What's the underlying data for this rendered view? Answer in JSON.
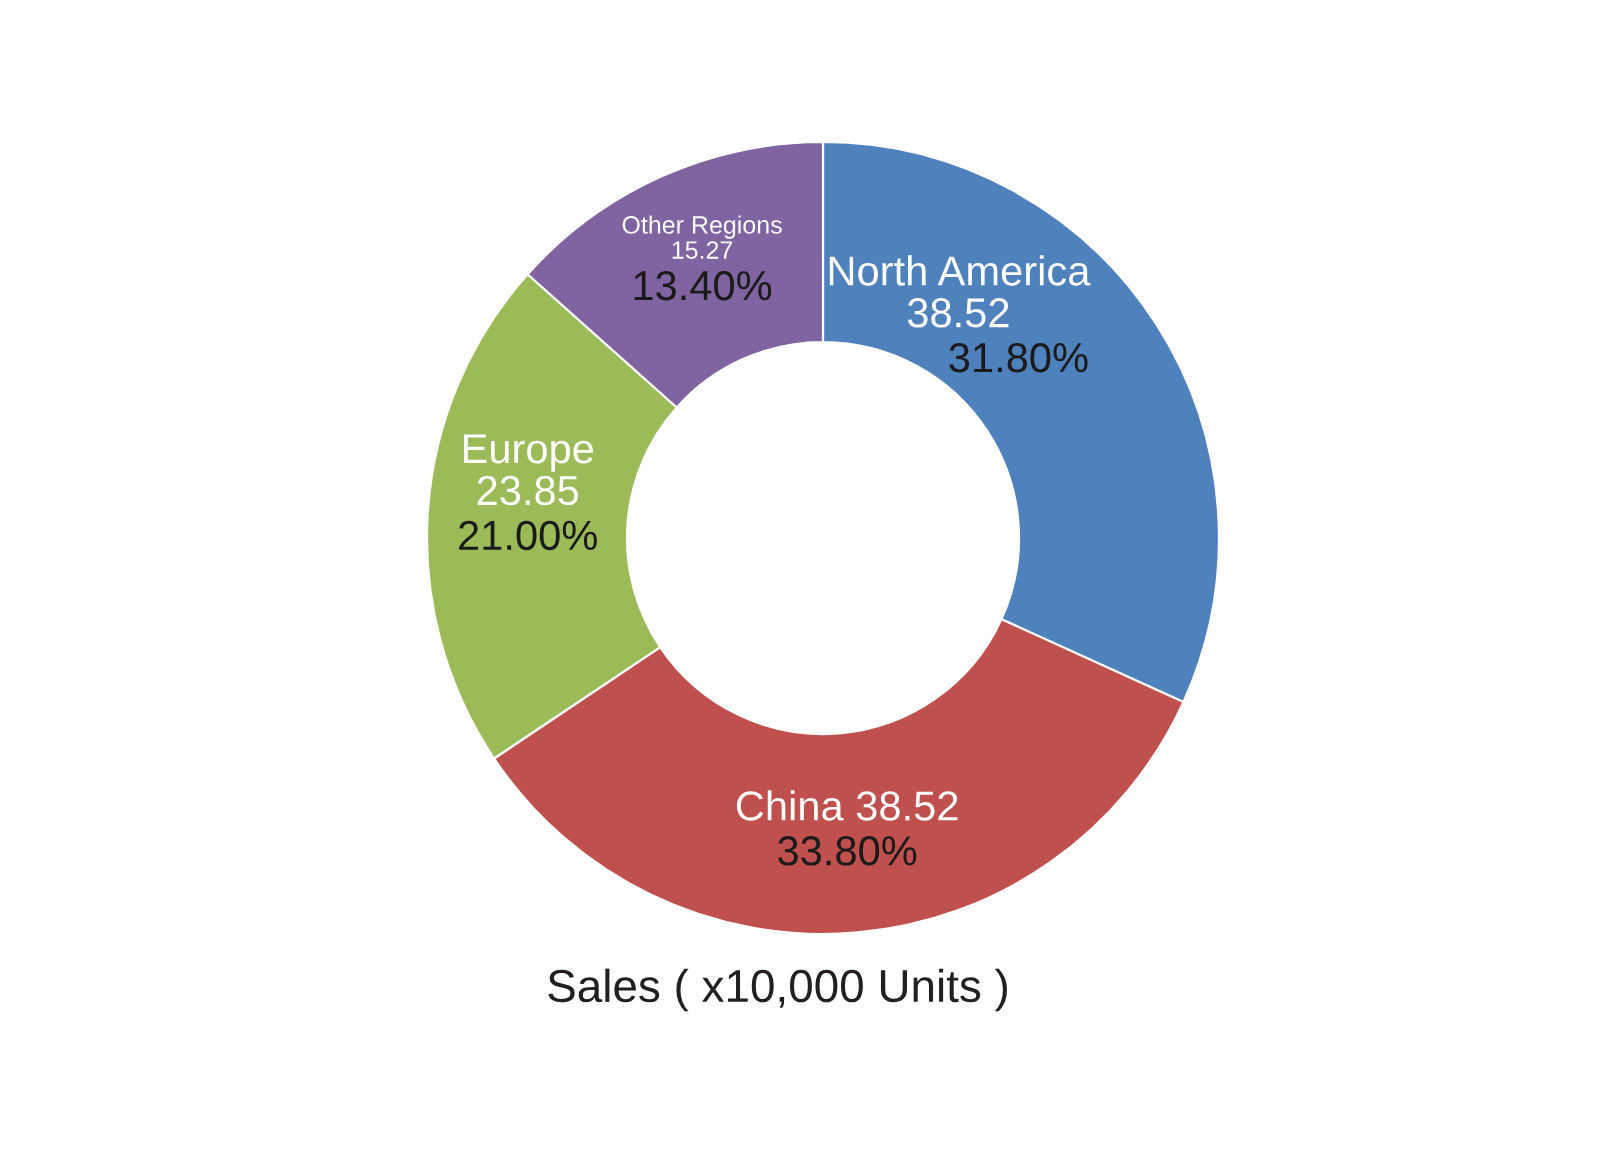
{
  "chart_data": {
    "type": "donut",
    "title": "Sales ( x10,000 Units )",
    "categories": [
      "North America\n38.52",
      "China 38.52",
      "Europe\n23.85",
      "Other Regions\n15.27"
    ],
    "values": [
      31.8,
      33.8,
      21.0,
      13.4
    ],
    "colors": [
      "#4f81bd",
      "#c0504d",
      "#9bbb59",
      "#8064a2"
    ],
    "value_labels": [
      "31.80%",
      "33.80%",
      "21.00%",
      "13.40%"
    ]
  }
}
